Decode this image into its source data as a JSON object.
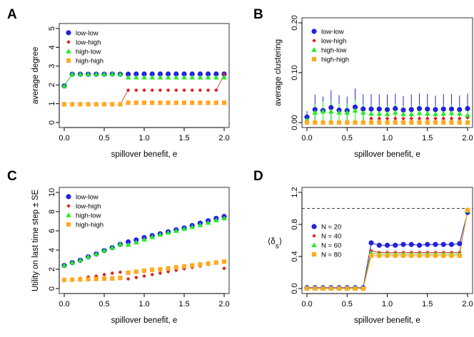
{
  "figure": {
    "panels": [
      "A",
      "B",
      "C",
      "D"
    ]
  },
  "chart_data": [
    {
      "panel": "A",
      "type": "scatter",
      "xlabel": "spillover benefit,  e",
      "ylabel": "average degree",
      "xlim": [
        0,
        2
      ],
      "ylim": [
        0,
        5
      ],
      "xticks": [
        "0.0",
        "0.5",
        "1.0",
        "1.5",
        "2.0"
      ],
      "yticks": [
        "0",
        "1",
        "2",
        "3",
        "4",
        "5"
      ],
      "legend_position": "top-left",
      "x": [
        0.0,
        0.1,
        0.2,
        0.3,
        0.4,
        0.5,
        0.6,
        0.7,
        0.8,
        0.9,
        1.0,
        1.1,
        1.2,
        1.3,
        1.4,
        1.5,
        1.6,
        1.7,
        1.8,
        1.9,
        2.0
      ],
      "series": [
        {
          "name": "low-low",
          "marker": "circle",
          "color": "#2222dd",
          "values": [
            1.95,
            2.57,
            2.57,
            2.57,
            2.57,
            2.57,
            2.58,
            2.57,
            2.57,
            2.58,
            2.58,
            2.58,
            2.58,
            2.58,
            2.58,
            2.58,
            2.58,
            2.58,
            2.58,
            2.58,
            2.58
          ]
        },
        {
          "name": "low-high",
          "marker": "diamond",
          "color": "#dd2222",
          "values": [
            0.97,
            0.97,
            0.97,
            0.97,
            0.97,
            0.97,
            0.97,
            0.97,
            1.72,
            1.72,
            1.72,
            1.72,
            1.72,
            1.72,
            1.72,
            1.72,
            1.72,
            1.72,
            1.72,
            1.72,
            2.55
          ]
        },
        {
          "name": "high-low",
          "marker": "triangle",
          "color": "#22ee22",
          "values": [
            1.95,
            2.57,
            2.57,
            2.57,
            2.57,
            2.57,
            2.58,
            2.57,
            2.4,
            2.4,
            2.4,
            2.4,
            2.4,
            2.4,
            2.4,
            2.4,
            2.4,
            2.4,
            2.4,
            2.4,
            2.4
          ]
        },
        {
          "name": "high-high",
          "marker": "square",
          "color": "#ffaa22",
          "values": [
            0.97,
            0.97,
            0.97,
            0.97,
            0.97,
            0.97,
            0.97,
            0.97,
            1.05,
            1.05,
            1.05,
            1.05,
            1.05,
            1.05,
            1.05,
            1.05,
            1.05,
            1.05,
            1.05,
            1.05,
            1.05
          ]
        }
      ]
    },
    {
      "panel": "B",
      "type": "scatter",
      "xlabel": "spillover benefit,  e",
      "ylabel": "average clustering",
      "xlim": [
        0,
        2
      ],
      "ylim": [
        0,
        0.2
      ],
      "xticks": [
        "0.0",
        "0.5",
        "1.0",
        "1.5",
        "2.0"
      ],
      "yticks": [
        "0.00",
        "0.10",
        "0.20"
      ],
      "legend_position": "top-left",
      "x": [
        0.0,
        0.1,
        0.2,
        0.3,
        0.4,
        0.5,
        0.6,
        0.7,
        0.8,
        0.9,
        1.0,
        1.1,
        1.2,
        1.3,
        1.4,
        1.5,
        1.6,
        1.7,
        1.8,
        1.9,
        2.0
      ],
      "series": [
        {
          "name": "low-low",
          "marker": "circle",
          "color": "#2222dd",
          "values": [
            0.011,
            0.026,
            0.024,
            0.03,
            0.025,
            0.024,
            0.031,
            0.027,
            0.027,
            0.027,
            0.026,
            0.028,
            0.025,
            0.026,
            0.028,
            0.027,
            0.026,
            0.027,
            0.027,
            0.026,
            0.028
          ],
          "error": [
            0.012,
            0.03,
            0.028,
            0.035,
            0.03,
            0.028,
            0.037,
            0.03,
            0.03,
            0.03,
            0.03,
            0.03,
            0.028,
            0.03,
            0.03,
            0.03,
            0.028,
            0.03,
            0.03,
            0.028,
            0.03
          ]
        },
        {
          "name": "low-high",
          "marker": "diamond",
          "color": "#dd2222",
          "values": [
            0.0,
            0.0,
            0.0,
            0.0,
            0.0,
            0.0,
            0.0,
            0.0,
            0.008,
            0.008,
            0.008,
            0.008,
            0.008,
            0.008,
            0.008,
            0.008,
            0.008,
            0.008,
            0.008,
            0.008,
            0.01
          ],
          "error": [
            0,
            0,
            0,
            0,
            0,
            0,
            0,
            0,
            0.006,
            0.006,
            0.006,
            0.006,
            0.006,
            0.006,
            0.006,
            0.006,
            0.006,
            0.006,
            0.006,
            0.006,
            0.006
          ]
        },
        {
          "name": "high-low",
          "marker": "triangle",
          "color": "#22ee22",
          "values": [
            0.005,
            0.02,
            0.022,
            0.022,
            0.02,
            0.02,
            0.024,
            0.02,
            0.018,
            0.018,
            0.017,
            0.02,
            0.017,
            0.017,
            0.019,
            0.018,
            0.017,
            0.018,
            0.019,
            0.018,
            0.015
          ],
          "error": [
            0.005,
            0.018,
            0.02,
            0.02,
            0.018,
            0.018,
            0.022,
            0.018,
            0.016,
            0.016,
            0.016,
            0.018,
            0.016,
            0.016,
            0.017,
            0.016,
            0.016,
            0.016,
            0.017,
            0.016,
            0.014
          ]
        },
        {
          "name": "high-high",
          "marker": "square",
          "color": "#ffaa22",
          "values": [
            0.0,
            0.0,
            0.0,
            0.0,
            0.0,
            0.0,
            0.0,
            0.0,
            0.0,
            0.0,
            0.0,
            0.0,
            0.0,
            0.0,
            0.0,
            0.0,
            0.0,
            0.0,
            0.0,
            0.0,
            0.0
          ],
          "error": [
            0,
            0,
            0,
            0,
            0,
            0,
            0,
            0,
            0,
            0,
            0,
            0,
            0,
            0,
            0,
            0,
            0,
            0,
            0,
            0,
            0
          ]
        }
      ]
    },
    {
      "panel": "C",
      "type": "scatter",
      "xlabel": "spillover benefit,  e",
      "ylabel": "Utility on last time step ± SE",
      "xlim": [
        0,
        2
      ],
      "ylim": [
        0,
        10
      ],
      "xticks": [
        "0.0",
        "0.5",
        "1.0",
        "1.5",
        "2.0"
      ],
      "yticks": [
        "0",
        "2",
        "4",
        "6",
        "8",
        "10"
      ],
      "legend_position": "top-left",
      "x": [
        0.0,
        0.1,
        0.2,
        0.3,
        0.4,
        0.5,
        0.6,
        0.7,
        0.8,
        0.9,
        1.0,
        1.1,
        1.2,
        1.3,
        1.4,
        1.5,
        1.6,
        1.7,
        1.8,
        1.9,
        2.0
      ],
      "series": [
        {
          "name": "low-low",
          "marker": "circle",
          "color": "#2222dd",
          "values": [
            2.4,
            2.7,
            2.95,
            3.3,
            3.6,
            3.95,
            4.25,
            4.6,
            4.85,
            5.05,
            5.3,
            5.5,
            5.7,
            5.9,
            6.1,
            6.3,
            6.55,
            6.8,
            7.05,
            7.3,
            7.5
          ]
        },
        {
          "name": "low-high",
          "marker": "diamond",
          "color": "#dd2222",
          "values": [
            0.9,
            0.95,
            1.05,
            1.2,
            1.3,
            1.45,
            1.6,
            1.7,
            1.0,
            1.15,
            1.3,
            1.45,
            1.6,
            1.75,
            1.9,
            2.05,
            2.2,
            2.35,
            2.5,
            2.7,
            2.1
          ]
        },
        {
          "name": "high-low",
          "marker": "triangle",
          "color": "#22ee22",
          "values": [
            2.4,
            2.7,
            2.95,
            3.3,
            3.6,
            3.95,
            4.25,
            4.6,
            4.55,
            4.8,
            5.1,
            5.35,
            5.6,
            5.8,
            6.0,
            6.2,
            6.4,
            6.6,
            6.85,
            7.1,
            7.3
          ]
        },
        {
          "name": "high-high",
          "marker": "square",
          "color": "#ffaa22",
          "values": [
            0.9,
            0.92,
            0.95,
            0.97,
            1.0,
            1.02,
            1.05,
            1.1,
            1.65,
            1.75,
            1.85,
            1.95,
            2.0,
            2.1,
            2.2,
            2.3,
            2.4,
            2.5,
            2.6,
            2.7,
            2.8
          ]
        }
      ]
    },
    {
      "panel": "D",
      "type": "line",
      "xlabel": "spillover benefit,  e",
      "ylabel_symbol": "⟨δ",
      "ylabel_subscript": "s",
      "ylabel_close": "⟩",
      "xlim": [
        0,
        2
      ],
      "ylim": [
        0,
        1.2
      ],
      "xticks": [
        "0.0",
        "0.5",
        "1.0",
        "1.5",
        "2.0"
      ],
      "yticks": [
        "0.0",
        "0.4",
        "0.8",
        "1.2"
      ],
      "reference_line": 1.0,
      "legend_position": "center-left",
      "x": [
        0.0,
        0.1,
        0.2,
        0.3,
        0.4,
        0.5,
        0.6,
        0.7,
        0.8,
        0.9,
        1.0,
        1.1,
        1.2,
        1.3,
        1.4,
        1.5,
        1.6,
        1.7,
        1.8,
        1.9,
        2.0
      ],
      "series": [
        {
          "name": "N = 20",
          "marker": "circle",
          "color": "#2222dd",
          "values": [
            0.01,
            0.01,
            0.01,
            0.01,
            0.01,
            0.01,
            0.01,
            0.01,
            0.57,
            0.54,
            0.54,
            0.54,
            0.55,
            0.55,
            0.54,
            0.55,
            0.55,
            0.55,
            0.55,
            0.56,
            0.95
          ]
        },
        {
          "name": "N = 40",
          "marker": "diamond",
          "color": "#dd2222",
          "values": [
            0.005,
            0.005,
            0.005,
            0.005,
            0.005,
            0.005,
            0.005,
            0.005,
            0.47,
            0.45,
            0.45,
            0.45,
            0.45,
            0.45,
            0.45,
            0.45,
            0.45,
            0.45,
            0.45,
            0.45,
            0.96
          ]
        },
        {
          "name": "N = 60",
          "marker": "triangle",
          "color": "#22ee22",
          "values": [
            0.003,
            0.003,
            0.003,
            0.003,
            0.003,
            0.003,
            0.003,
            0.003,
            0.44,
            0.43,
            0.43,
            0.43,
            0.43,
            0.43,
            0.43,
            0.43,
            0.43,
            0.43,
            0.43,
            0.43,
            0.97
          ]
        },
        {
          "name": "N = 80",
          "marker": "square",
          "color": "#ffaa22",
          "values": [
            0.0,
            0.0,
            0.0,
            0.0,
            0.0,
            0.0,
            0.0,
            0.0,
            0.41,
            0.41,
            0.41,
            0.41,
            0.41,
            0.41,
            0.41,
            0.41,
            0.41,
            0.41,
            0.41,
            0.41,
            0.98
          ]
        }
      ]
    }
  ]
}
